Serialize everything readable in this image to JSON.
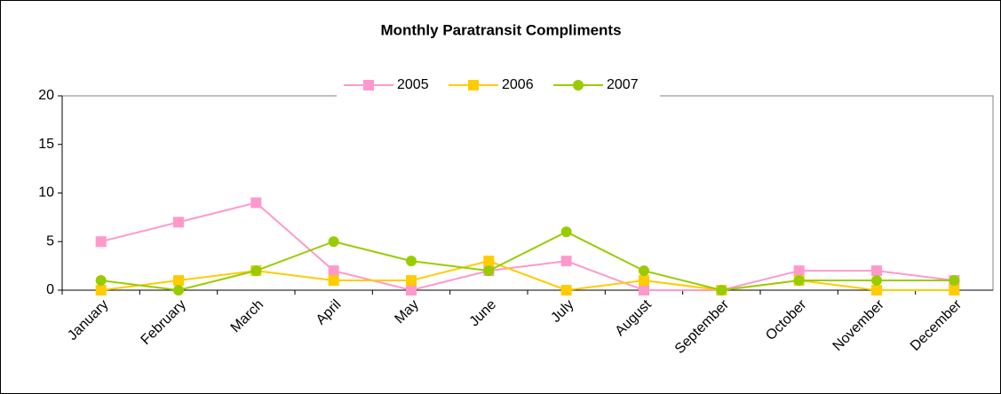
{
  "chart_data": {
    "type": "line",
    "title": "Monthly Paratransit Compliments",
    "categories": [
      "January",
      "February",
      "March",
      "April",
      "May",
      "June",
      "July",
      "August",
      "September",
      "October",
      "November",
      "December"
    ],
    "series": [
      {
        "name": "2005",
        "color": "#ff99cc",
        "marker": "square",
        "values": [
          5,
          7,
          9,
          2,
          0,
          2,
          3,
          0,
          0,
          2,
          2,
          1
        ]
      },
      {
        "name": "2006",
        "color": "#ffcc00",
        "marker": "square",
        "values": [
          0,
          1,
          2,
          1,
          1,
          3,
          0,
          1,
          0,
          1,
          0,
          0
        ]
      },
      {
        "name": "2007",
        "color": "#99cc00",
        "marker": "circle",
        "values": [
          1,
          0,
          2,
          5,
          3,
          2,
          6,
          2,
          0,
          1,
          1,
          1
        ]
      }
    ],
    "ylim": [
      0,
      20
    ],
    "yticks": [
      0,
      5,
      10,
      15,
      20
    ],
    "legend": "top"
  }
}
